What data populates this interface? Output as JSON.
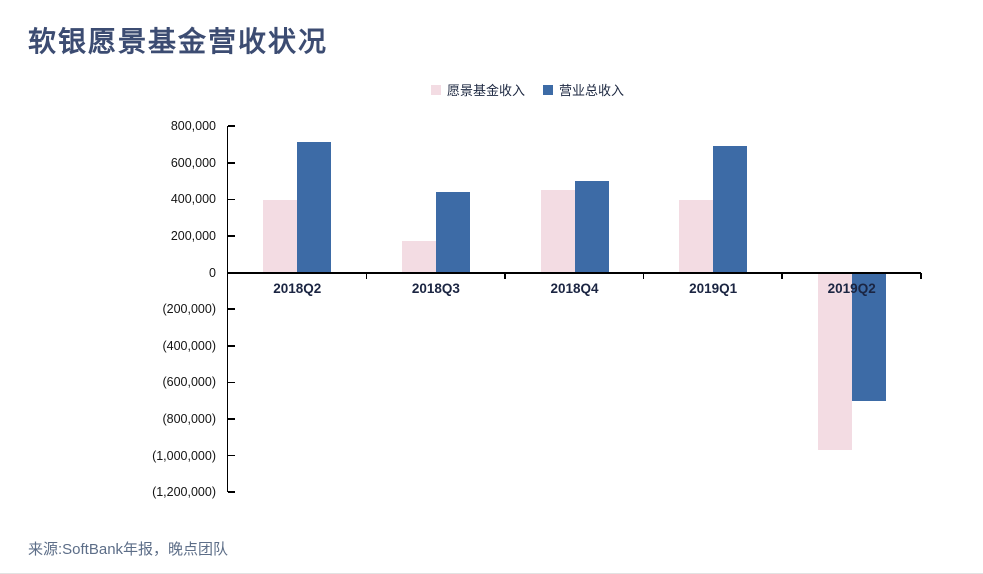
{
  "page": {
    "title": "软银愿景基金营收状况",
    "source": "来源:SoftBank年报，晚点团队"
  },
  "chart_data": {
    "type": "bar",
    "title": "软银愿景基金营收状况",
    "categories": [
      "2018Q2",
      "2018Q3",
      "2018Q4",
      "2019Q1",
      "2019Q2"
    ],
    "series": [
      {
        "name": "愿景基金收入",
        "color": "#f3dce3",
        "values": [
          395000,
          175000,
          450000,
          397000,
          -970000
        ]
      },
      {
        "name": "营业总收入",
        "color": "#3d6ba6",
        "values": [
          715000,
          440000,
          500000,
          690000,
          -700000
        ]
      }
    ],
    "ylim": [
      -1200000,
      800000
    ],
    "y_tick_step": 200000,
    "y_tick_values": [
      800000,
      600000,
      400000,
      200000,
      0,
      -200000,
      -400000,
      -600000,
      -800000,
      -1000000,
      -1200000
    ],
    "y_tick_labels": [
      "800,000",
      "600,000",
      "400,000",
      "200,000",
      "0",
      "(200,000)",
      "(400,000)",
      "(600,000)",
      "(800,000)",
      "(1,000,000)",
      "(1,200,000)"
    ],
    "grid": false,
    "legend_position": "top",
    "number_format": "accounting"
  },
  "colors": {
    "title": "#3c4c72",
    "axis": "#000000",
    "category_label": "#1b2542",
    "source": "#5d6e88"
  }
}
